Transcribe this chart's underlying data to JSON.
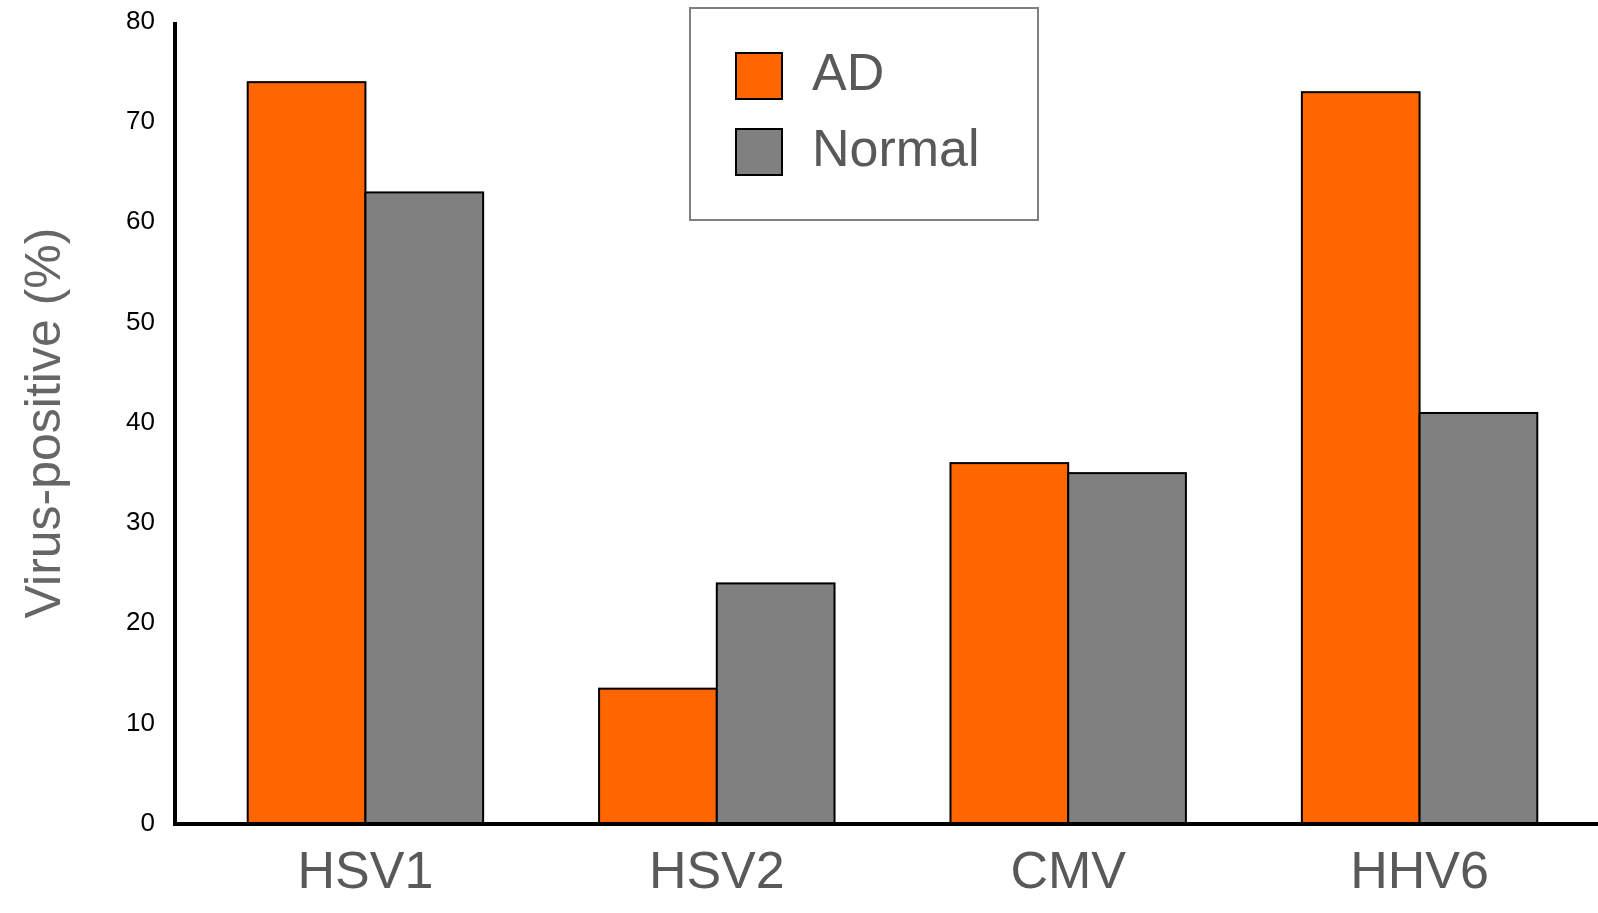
{
  "chart_data": {
    "type": "bar",
    "ylabel": "Virus-positive (%)",
    "categories": [
      "HSV1",
      "HSV2",
      "CMV",
      "HHV6"
    ],
    "series": [
      {
        "name": "AD",
        "color": "#ff6600",
        "values": [
          74,
          13.5,
          36,
          73
        ]
      },
      {
        "name": "Normal",
        "color": "#808080",
        "values": [
          63,
          24,
          35,
          41
        ]
      }
    ],
    "ylim": [
      0,
      80
    ],
    "yticks": [
      0,
      10,
      20,
      30,
      40,
      50,
      60,
      70,
      80
    ],
    "grid": false,
    "legend": "top"
  }
}
